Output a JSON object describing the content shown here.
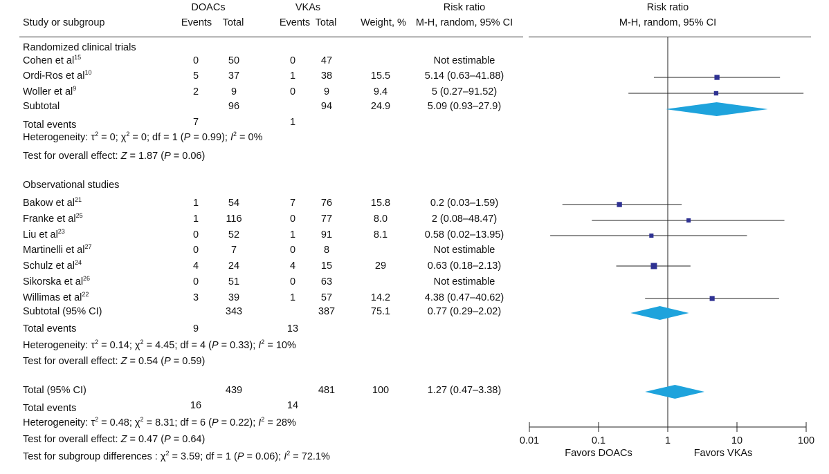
{
  "header": {
    "study_label": "Study or subgroup",
    "doacs": "DOACs",
    "vkas": "VKAs",
    "events": "Events",
    "total": "Total",
    "weight": "Weight, %",
    "rr_title": "Risk ratio",
    "rr_method": "M-H, random, 95% CI",
    "plot_title": "Risk ratio",
    "plot_method": "M-H, random, 95% CI"
  },
  "groups": [
    {
      "title": "Randomized clinical trials",
      "studies": [
        {
          "name": "Cohen et al",
          "ref": "15",
          "de": "0",
          "dt": "50",
          "ve": "0",
          "vt": "47",
          "weight": "",
          "ci_text": "Not estimable",
          "rr": null,
          "lo": null,
          "hi": null
        },
        {
          "name": "Ordi-Ros et al",
          "ref": "10",
          "de": "5",
          "dt": "37",
          "ve": "1",
          "vt": "38",
          "weight": "15.5",
          "ci_text": "5.14 (0.63–41.88)",
          "rr": 5.14,
          "lo": 0.63,
          "hi": 41.88
        },
        {
          "name": "Woller et al",
          "ref": "9",
          "de": "2",
          "dt": "9",
          "ve": "0",
          "vt": "9",
          "weight": "9.4",
          "ci_text": "5 (0.27–91.52)",
          "rr": 5,
          "lo": 0.27,
          "hi": 91.52
        }
      ],
      "subtotal": {
        "label": "Subtotal",
        "dt": "96",
        "vt": "94",
        "weight": "24.9",
        "ci_text": "5.09 (0.93–27.9)",
        "rr": 5.09,
        "lo": 0.93,
        "hi": 27.9
      },
      "total_events": {
        "label": "Total events",
        "de": "7",
        "ve": "1"
      },
      "heterogeneity": {
        "prefix": "Heterogeneity: τ",
        "tau2": "0",
        "chi2": "0",
        "df": "1",
        "p": "0.99",
        "i2": "0%"
      },
      "overall": {
        "prefix": "Test for overall effect: ",
        "z": "1.87",
        "p": "0.06"
      }
    },
    {
      "title": "Observational studies",
      "studies": [
        {
          "name": "Bakow et al",
          "ref": "21",
          "de": "1",
          "dt": "54",
          "ve": "7",
          "vt": "76",
          "weight": "15.8",
          "ci_text": "0.2 (0.03–1.59)",
          "rr": 0.2,
          "lo": 0.03,
          "hi": 1.59
        },
        {
          "name": "Franke et al",
          "ref": "25",
          "de": "1",
          "dt": "116",
          "ve": "0",
          "vt": "77",
          "weight": "8.0",
          "ci_text": "2 (0.08–48.47)",
          "rr": 2,
          "lo": 0.08,
          "hi": 48.47
        },
        {
          "name": "Liu et al",
          "ref": "23",
          "de": "0",
          "dt": "52",
          "ve": "1",
          "vt": "91",
          "weight": "8.1",
          "ci_text": "0.58 (0.02–13.95)",
          "rr": 0.58,
          "lo": 0.02,
          "hi": 13.95
        },
        {
          "name": "Martinelli et al",
          "ref": "27",
          "de": "0",
          "dt": "7",
          "ve": "0",
          "vt": "8",
          "weight": "",
          "ci_text": "Not estimable",
          "rr": null,
          "lo": null,
          "hi": null
        },
        {
          "name": "Schulz et al",
          "ref": "24",
          "de": "4",
          "dt": "24",
          "ve": "4",
          "vt": "15",
          "weight": "29",
          "ci_text": "0.63 (0.18–2.13)",
          "rr": 0.63,
          "lo": 0.18,
          "hi": 2.13
        },
        {
          "name": "Sikorska et al",
          "ref": "26",
          "de": "0",
          "dt": "51",
          "ve": "0",
          "vt": "63",
          "weight": "",
          "ci_text": "Not estimable",
          "rr": null,
          "lo": null,
          "hi": null
        },
        {
          "name": "Willimas et al",
          "ref": "22",
          "de": "3",
          "dt": "39",
          "ve": "1",
          "vt": "57",
          "weight": "14.2",
          "ci_text": "4.38 (0.47–40.62)",
          "rr": 4.38,
          "lo": 0.47,
          "hi": 40.62
        }
      ],
      "subtotal": {
        "label": "Subtotal (95% CI)",
        "dt": "343",
        "vt": "387",
        "weight": "75.1",
        "ci_text": "0.77 (0.29–2.02)",
        "rr": 0.77,
        "lo": 0.29,
        "hi": 2.02
      },
      "total_events": {
        "label": "Total events",
        "de": "9",
        "ve": "13"
      },
      "heterogeneity": {
        "prefix": "Heterogeneity: τ",
        "tau2": "0.14",
        "chi2": "4.45",
        "df": "4",
        "p": "0.33",
        "i2": "10%"
      },
      "overall": {
        "prefix": "Test for overall effect: ",
        "z": "0.54",
        "p": "0.59"
      }
    }
  ],
  "total": {
    "label": "Total (95% CI)",
    "dt": "439",
    "vt": "481",
    "weight": "100",
    "ci_text": "1.27 (0.47–3.38)",
    "rr": 1.27,
    "lo": 0.47,
    "hi": 3.38,
    "total_events": {
      "label": "Total events",
      "de": "16",
      "ve": "14"
    },
    "heterogeneity": {
      "prefix": "Heterogeneity: τ",
      "tau2": "0.48",
      "chi2": "8.31",
      "df": "6",
      "p": "0.22",
      "i2": "28%"
    },
    "overall": {
      "prefix": "Test for overall effect: ",
      "z": "0.47",
      "p": "0.64"
    },
    "subgroup": {
      "prefix": "Test for subgroup differences : ",
      "chi2": "3.59",
      "df": "1",
      "p": "0.06",
      "i2": "72.1%"
    }
  },
  "chart_data": {
    "type": "forest",
    "x_scale": "log",
    "xlim": [
      0.01,
      100
    ],
    "x_ticks": [
      "0.01",
      "0.1",
      "1",
      "10",
      "100"
    ],
    "left_label": "Favors DOACs",
    "right_label": "Favors VKAs",
    "colors": {
      "square": "#2e3192",
      "diamond": "#1ea3dc",
      "line": "#222222"
    }
  }
}
